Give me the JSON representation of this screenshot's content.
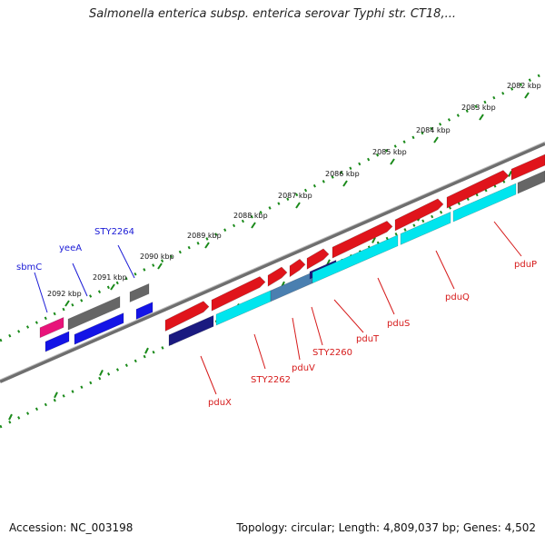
{
  "header": {
    "title": "Salmonella enterica subsp. enterica serovar Typhi str. CT18,..."
  },
  "footer": {
    "accession": "Accession: NC_003198",
    "summary": "Topology: circular; Length: 4,809,037 bp; Genes: 4,502"
  },
  "colors": {
    "forward_gene": "#e0141b",
    "reverse_gene": "#00e5ee",
    "dark_reverse": "#1a1a80",
    "grey_gene": "#666666",
    "blue_gene": "#1414e6",
    "pink_gene": "#e8147a",
    "mixed_gene": "#4a7fb0",
    "backbone": "#6e6e6e",
    "tick": "#1a8a1a"
  },
  "scale_ticks": [
    {
      "label": "2082 kbp"
    },
    {
      "label": "2083 kbp"
    },
    {
      "label": "2084 kbp"
    },
    {
      "label": "2085 kbp"
    },
    {
      "label": "2086 kbp"
    },
    {
      "label": "2087 kbp"
    },
    {
      "label": "2088 kbp"
    },
    {
      "label": "2089 kbp"
    },
    {
      "label": "2090 kbp"
    },
    {
      "label": "2091 kbp"
    },
    {
      "label": "2092 kbp"
    }
  ],
  "gene_labels_top": [
    {
      "label": "sbmC"
    },
    {
      "label": "yeeA"
    },
    {
      "label": "STY2264"
    }
  ],
  "gene_labels_bottom": [
    {
      "label": "pduX"
    },
    {
      "label": "STY2262"
    },
    {
      "label": "pduV"
    },
    {
      "label": "STY2260"
    },
    {
      "label": "pduT"
    },
    {
      "label": "pduS"
    },
    {
      "label": "pduQ"
    },
    {
      "label": "pduP"
    }
  ]
}
